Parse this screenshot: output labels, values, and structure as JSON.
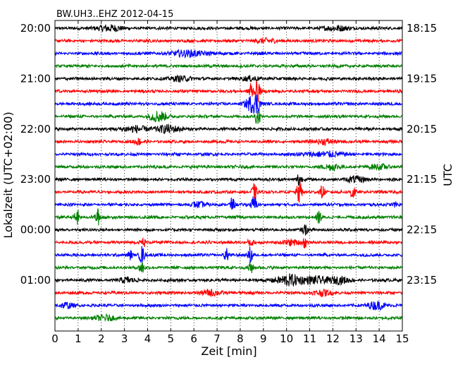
{
  "chart_data": {
    "type": "line",
    "title": "BW.UH3..EHZ 2012-04-15",
    "xlabel": "Zeit  [min]",
    "ylabel_left": "Lokalzeit (UTC+02:00)",
    "ylabel_right": "UTC",
    "xlim": [
      0,
      15
    ],
    "x_ticks": [
      "0",
      "1",
      "2",
      "3",
      "4",
      "5",
      "6",
      "7",
      "8",
      "9",
      "10",
      "11",
      "12",
      "13",
      "14",
      "15"
    ],
    "x_grid": "dotted vertical lines at each minute",
    "minutes_per_line": 15,
    "line_count": 24,
    "trace_colors": [
      "#000000",
      "#ff0000",
      "#0000ff",
      "#008000"
    ],
    "left_tick_labels": [
      {
        "line": 0,
        "label": "20:00"
      },
      {
        "line": 4,
        "label": "21:00"
      },
      {
        "line": 8,
        "label": "22:00"
      },
      {
        "line": 12,
        "label": "23:00"
      },
      {
        "line": 16,
        "label": "00:00"
      },
      {
        "line": 20,
        "label": "01:00"
      }
    ],
    "right_tick_labels": [
      {
        "line": 0,
        "label": "18:15"
      },
      {
        "line": 4,
        "label": "19:15"
      },
      {
        "line": 8,
        "label": "20:15"
      },
      {
        "line": 12,
        "label": "21:15"
      },
      {
        "line": 16,
        "label": "22:15"
      },
      {
        "line": 20,
        "label": "23:15"
      }
    ],
    "events": [
      {
        "line": 0,
        "x": 2.3,
        "amp": 0.6,
        "dur": 0.8,
        "kind": "burst"
      },
      {
        "line": 0,
        "x": 12.2,
        "amp": 0.45,
        "dur": 0.8,
        "kind": "burst"
      },
      {
        "line": 1,
        "x": 9.1,
        "amp": 0.45,
        "dur": 0.6,
        "kind": "burst"
      },
      {
        "line": 2,
        "x": 5.8,
        "amp": 0.55,
        "dur": 1.2,
        "kind": "burst"
      },
      {
        "line": 4,
        "x": 5.4,
        "amp": 0.5,
        "dur": 0.6,
        "kind": "burst"
      },
      {
        "line": 4,
        "x": 8.5,
        "amp": 0.45,
        "dur": 0.5,
        "kind": "burst"
      },
      {
        "line": 5,
        "x": 8.45,
        "amp": 2.0,
        "dur": 0.15,
        "kind": "spike"
      },
      {
        "line": 5,
        "x": 8.75,
        "amp": 2.3,
        "dur": 0.15,
        "kind": "spike"
      },
      {
        "line": 6,
        "x": 8.5,
        "amp": 1.6,
        "dur": 0.4,
        "kind": "burst"
      },
      {
        "line": 6,
        "x": 8.75,
        "amp": 1.5,
        "dur": 0.15,
        "kind": "spike"
      },
      {
        "line": 7,
        "x": 4.45,
        "amp": 1.1,
        "dur": 0.5,
        "kind": "burst"
      },
      {
        "line": 7,
        "x": 8.75,
        "amp": 1.8,
        "dur": 0.15,
        "kind": "spike"
      },
      {
        "line": 8,
        "x": 3.4,
        "amp": 0.65,
        "dur": 0.8,
        "kind": "burst"
      },
      {
        "line": 8,
        "x": 4.9,
        "amp": 0.8,
        "dur": 0.7,
        "kind": "burst"
      },
      {
        "line": 9,
        "x": 3.6,
        "amp": 0.55,
        "dur": 0.3,
        "kind": "burst"
      },
      {
        "line": 9,
        "x": 11.7,
        "amp": 0.55,
        "dur": 0.5,
        "kind": "burst"
      },
      {
        "line": 10,
        "x": 11.6,
        "amp": 0.5,
        "dur": 1.2,
        "kind": "burst"
      },
      {
        "line": 11,
        "x": 12.0,
        "amp": 0.55,
        "dur": 0.6,
        "kind": "burst"
      },
      {
        "line": 11,
        "x": 14.0,
        "amp": 0.45,
        "dur": 0.6,
        "kind": "burst"
      },
      {
        "line": 12,
        "x": 10.55,
        "amp": 1.6,
        "dur": 0.15,
        "kind": "spike"
      },
      {
        "line": 12,
        "x": 13.0,
        "amp": 0.55,
        "dur": 0.6,
        "kind": "burst"
      },
      {
        "line": 13,
        "x": 8.6,
        "amp": 1.6,
        "dur": 0.15,
        "kind": "spike"
      },
      {
        "line": 13,
        "x": 10.55,
        "amp": 2.3,
        "dur": 0.15,
        "kind": "spike"
      },
      {
        "line": 13,
        "x": 11.55,
        "amp": 1.4,
        "dur": 0.15,
        "kind": "spike"
      },
      {
        "line": 13,
        "x": 12.85,
        "amp": 1.6,
        "dur": 0.15,
        "kind": "spike"
      },
      {
        "line": 14,
        "x": 7.65,
        "amp": 1.3,
        "dur": 0.15,
        "kind": "spike"
      },
      {
        "line": 14,
        "x": 8.6,
        "amp": 1.9,
        "dur": 0.15,
        "kind": "spike"
      },
      {
        "line": 14,
        "x": 6.2,
        "amp": 0.5,
        "dur": 0.4,
        "kind": "burst"
      },
      {
        "line": 14,
        "x": 14.7,
        "amp": 0.45,
        "dur": 0.2,
        "kind": "burst"
      },
      {
        "line": 15,
        "x": 0.95,
        "amp": 1.6,
        "dur": 0.15,
        "kind": "spike"
      },
      {
        "line": 15,
        "x": 1.85,
        "amp": 1.6,
        "dur": 0.15,
        "kind": "spike"
      },
      {
        "line": 15,
        "x": 11.4,
        "amp": 1.2,
        "dur": 0.15,
        "kind": "spike"
      },
      {
        "line": 16,
        "x": 10.8,
        "amp": 1.0,
        "dur": 0.15,
        "kind": "spike"
      },
      {
        "line": 17,
        "x": 3.8,
        "amp": 1.0,
        "dur": 0.15,
        "kind": "spike"
      },
      {
        "line": 17,
        "x": 8.45,
        "amp": 0.9,
        "dur": 0.15,
        "kind": "spike"
      },
      {
        "line": 17,
        "x": 10.8,
        "amp": 1.0,
        "dur": 0.15,
        "kind": "spike"
      },
      {
        "line": 17,
        "x": 10.2,
        "amp": 0.5,
        "dur": 0.5,
        "kind": "burst"
      },
      {
        "line": 18,
        "x": 3.75,
        "amp": 1.8,
        "dur": 0.15,
        "kind": "spike"
      },
      {
        "line": 18,
        "x": 3.25,
        "amp": 0.9,
        "dur": 0.15,
        "kind": "spike"
      },
      {
        "line": 18,
        "x": 7.4,
        "amp": 1.2,
        "dur": 0.15,
        "kind": "spike"
      },
      {
        "line": 18,
        "x": 8.45,
        "amp": 1.6,
        "dur": 0.15,
        "kind": "spike"
      },
      {
        "line": 19,
        "x": 3.75,
        "amp": 1.4,
        "dur": 0.15,
        "kind": "spike"
      },
      {
        "line": 19,
        "x": 8.45,
        "amp": 1.4,
        "dur": 0.15,
        "kind": "spike"
      },
      {
        "line": 20,
        "x": 10.1,
        "amp": 1.1,
        "dur": 0.8,
        "kind": "burst"
      },
      {
        "line": 20,
        "x": 11.3,
        "amp": 0.7,
        "dur": 0.8,
        "kind": "burst"
      },
      {
        "line": 20,
        "x": 12.3,
        "amp": 0.6,
        "dur": 0.6,
        "kind": "burst"
      },
      {
        "line": 20,
        "x": 3.1,
        "amp": 0.5,
        "dur": 0.5,
        "kind": "burst"
      },
      {
        "line": 21,
        "x": 6.8,
        "amp": 0.55,
        "dur": 0.6,
        "kind": "burst"
      },
      {
        "line": 21,
        "x": 11.5,
        "amp": 0.55,
        "dur": 0.6,
        "kind": "burst"
      },
      {
        "line": 22,
        "x": 0.5,
        "amp": 0.5,
        "dur": 0.4,
        "kind": "burst"
      },
      {
        "line": 22,
        "x": 13.9,
        "amp": 0.8,
        "dur": 0.5,
        "kind": "burst"
      },
      {
        "line": 23,
        "x": 2.2,
        "amp": 0.5,
        "dur": 0.6,
        "kind": "burst"
      }
    ]
  }
}
